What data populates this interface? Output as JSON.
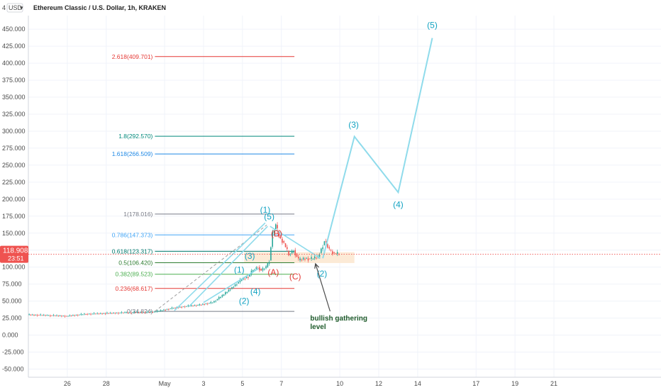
{
  "header": {
    "currency_label": "USD",
    "chevron_glyph": "▾",
    "symbol_title": "Ethereum Classic / U.S. Dollar, 1h, KRAKEN"
  },
  "price_badge": {
    "price": "118.908",
    "countdown": "23:51",
    "color": "#ef5350"
  },
  "colors": {
    "wave_line": "#8fdbeb",
    "wave_label": "#13a3c2",
    "corrective_label": "#e53935",
    "candle_up": "#26a69a",
    "candle_down": "#ef5350",
    "price_line": "#ef5350",
    "grid": "#f0f3fa",
    "zone_fill": "#fbe6cf",
    "note_color": "#1e5a2a"
  },
  "chart_data": {
    "type": "line",
    "title": "Ethereum Classic / U.S. Dollar, 1h, KRAKEN",
    "xlabel": "",
    "ylabel": "",
    "ylim": [
      -62,
      470
    ],
    "xlim": [
      "2021-04-24",
      "2021-05-26T12:00"
    ],
    "grid": true,
    "y_ticks": [
      "-50.000",
      "-25.000",
      "0.000",
      "25.000",
      "50.000",
      "75.000",
      "100.000",
      "125.000",
      "150.000",
      "175.000",
      "200.000",
      "225.000",
      "250.000",
      "275.000",
      "300.000",
      "325.000",
      "350.000",
      "375.000",
      "400.000",
      "425.000",
      "450.000"
    ],
    "y_tick_values": [
      -50,
      -25,
      0,
      25,
      50,
      75,
      100,
      125,
      150,
      175,
      200,
      225,
      250,
      275,
      300,
      325,
      350,
      375,
      400,
      425,
      450
    ],
    "x_ticks": [
      {
        "label": "26",
        "date": "2021-04-26"
      },
      {
        "label": "28",
        "date": "2021-04-28"
      },
      {
        "label": "May",
        "date": "2021-05-01"
      },
      {
        "label": "3",
        "date": "2021-05-03"
      },
      {
        "label": "5",
        "date": "2021-05-05"
      },
      {
        "label": "7",
        "date": "2021-05-07"
      },
      {
        "label": "10",
        "date": "2021-05-10"
      },
      {
        "label": "12",
        "date": "2021-05-12"
      },
      {
        "label": "14",
        "date": "2021-05-14"
      },
      {
        "label": "17",
        "date": "2021-05-17"
      },
      {
        "label": "19",
        "date": "2021-05-19"
      },
      {
        "label": "21",
        "date": "2021-05-21"
      }
    ],
    "price_series": {
      "x": [
        "2021-04-24",
        "2021-04-25",
        "2021-04-26",
        "2021-04-27",
        "2021-04-28",
        "2021-04-29",
        "2021-04-30T12:00",
        "2021-05-01T12:00",
        "2021-05-02",
        "2021-05-02T18:00",
        "2021-05-03T12:00",
        "2021-05-04",
        "2021-05-04T12:00",
        "2021-05-04T20:00",
        "2021-05-05",
        "2021-05-05T08:00",
        "2021-05-05T14:00",
        "2021-05-05T20:00",
        "2021-05-06",
        "2021-05-06T06:00",
        "2021-05-06T10:00",
        "2021-05-06T14:00",
        "2021-05-06T18:00",
        "2021-05-06T22:00",
        "2021-05-07T04:00",
        "2021-05-07T10:00",
        "2021-05-07T16:00",
        "2021-05-07T22:00",
        "2021-05-08T06:00",
        "2021-05-08T14:00",
        "2021-05-08T22:00",
        "2021-05-09T06:00",
        "2021-05-09T12:00",
        "2021-05-09T18:00",
        "2021-05-10"
      ],
      "y": [
        30,
        29,
        28,
        31,
        32,
        33,
        34,
        40,
        42,
        44,
        48,
        58,
        70,
        78,
        82,
        86,
        96,
        100,
        95,
        100,
        110,
        150,
        162,
        145,
        135,
        118,
        125,
        110,
        113,
        112,
        115,
        138,
        125,
        120,
        119
      ]
    },
    "projected_path": {
      "x": [
        "2021-05-09T03:00",
        "2021-05-10T18:00",
        "2021-05-13T00:00",
        "2021-05-14T18:00"
      ],
      "y": [
        113,
        292,
        210,
        437
      ]
    },
    "fib_levels": [
      {
        "label": "0(34.824)",
        "value": 34.824,
        "color": "#787b86"
      },
      {
        "label": "0.236(68.617)",
        "value": 68.617,
        "color": "#e53935"
      },
      {
        "label": "0.382(89.523)",
        "value": 89.523,
        "color": "#4caf50"
      },
      {
        "label": "0.5(106.420)",
        "value": 106.42,
        "color": "#2e7d32"
      },
      {
        "label": "0.618(123.317)",
        "value": 123.317,
        "color": "#00796b"
      },
      {
        "label": "0.786(147.373)",
        "value": 147.373,
        "color": "#42a5f5"
      },
      {
        "label": "1(178.016)",
        "value": 178.016,
        "color": "#787b86"
      },
      {
        "label": "1.618(266.509)",
        "value": 266.509,
        "color": "#1e88e5"
      },
      {
        "label": "1.8(292.570)",
        "value": 292.57,
        "color": "#00897b"
      },
      {
        "label": "2.618(409.701)",
        "value": 409.701,
        "color": "#e53935"
      }
    ],
    "fib_range": {
      "x_start": "2021-04-30T12:00",
      "x_end": "2021-05-06T10:00"
    },
    "fib_line_end": "2021-05-07T16:00",
    "wave_labels": [
      {
        "text": "(1)",
        "x": "2021-05-06T04:00",
        "y": 180,
        "kind": "impulse"
      },
      {
        "text": "(5)",
        "x": "2021-05-06T09:00",
        "y": 170,
        "kind": "impulse"
      },
      {
        "text": "(3)",
        "x": "2021-05-05T09:00",
        "y": 112,
        "kind": "impulse"
      },
      {
        "text": "(1)",
        "x": "2021-05-04T20:00",
        "y": 92,
        "kind": "impulse"
      },
      {
        "text": "(4)",
        "x": "2021-05-05T16:00",
        "y": 60,
        "kind": "impulse"
      },
      {
        "text": "(2)",
        "x": "2021-05-05T02:00",
        "y": 46,
        "kind": "impulse"
      },
      {
        "text": "(B)",
        "x": "2021-05-06T18:00",
        "y": 145,
        "kind": "corrective"
      },
      {
        "text": "(A)",
        "x": "2021-05-06T14:00",
        "y": 88,
        "kind": "corrective"
      },
      {
        "text": "(C)",
        "x": "2021-05-07T17:00",
        "y": 82,
        "kind": "corrective"
      },
      {
        "text": "(2)",
        "x": "2021-05-09T02:00",
        "y": 86,
        "kind": "impulse"
      },
      {
        "text": "(3)",
        "x": "2021-05-10T17:00",
        "y": 305,
        "kind": "impulse"
      },
      {
        "text": "(4)",
        "x": "2021-05-13T00:00",
        "y": 188,
        "kind": "impulse"
      },
      {
        "text": "(5)",
        "x": "2021-05-14T18:00",
        "y": 452,
        "kind": "impulse"
      }
    ],
    "wave_paths": [
      {
        "x": [
          "2021-05-01T12:00",
          "2021-05-06T04:00"
        ],
        "y": [
          36,
          165
        ]
      },
      {
        "x": [
          "2021-05-02T06:00",
          "2021-05-06T07:00"
        ],
        "y": [
          42,
          160
        ]
      },
      {
        "x": [
          "2021-05-03T00:00",
          "2021-05-05T20:00"
        ],
        "y": [
          48,
          98
        ]
      },
      {
        "x": [
          "2021-05-06T10:00",
          "2021-05-09T00:00"
        ],
        "y": [
          160,
          113
        ]
      }
    ],
    "dashed_trend": {
      "x": [
        "2021-04-30T12:00",
        "2021-05-06T06:00"
      ],
      "y": [
        35,
        162
      ]
    },
    "support_zone": {
      "x_start": "2021-05-05T02:00",
      "x_end": "2021-05-10T18:00",
      "y_low": 106,
      "y_high": 122
    },
    "current_price": 118.908,
    "annotation": {
      "lines": [
        "bullish gathering",
        "level"
      ],
      "arrow_from": {
        "x": "2021-05-09T12:00",
        "y": 35
      },
      "arrow_to": {
        "x": "2021-05-08T18:00",
        "y": 105
      }
    }
  }
}
